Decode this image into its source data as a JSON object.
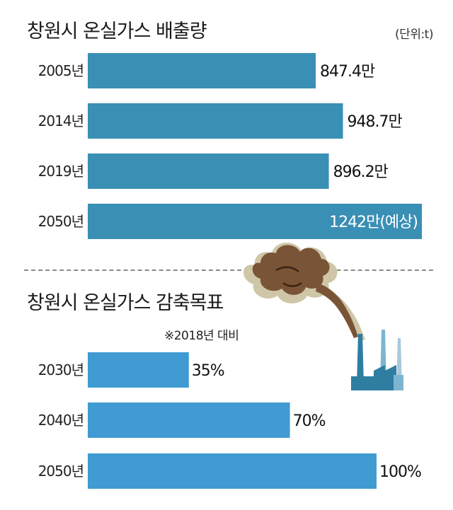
{
  "chart_data": [
    {
      "type": "bar",
      "orientation": "horizontal",
      "title": "창원시 온실가스 배출량",
      "unit_note": "(단위:t)",
      "categories": [
        "2005년",
        "2014년",
        "2019년",
        "2050년"
      ],
      "values": [
        8474000,
        9487000,
        8962000,
        12420000
      ],
      "value_labels": [
        "847.4만",
        "948.7만",
        "896.2만",
        "1242만(예상)"
      ],
      "bar_color": "#3a8fb5"
    },
    {
      "type": "bar",
      "orientation": "horizontal",
      "title": "창원시 온실가스 감축목표",
      "note": "※2018년 대비",
      "categories": [
        "2030년",
        "2040년",
        "2050년"
      ],
      "values": [
        35,
        70,
        100
      ],
      "value_labels": [
        "35%",
        "70%",
        "100%"
      ],
      "bar_color": "#3f9bd1"
    }
  ],
  "illustration": {
    "icon": "factory-smoke-icon",
    "smoke_color": "#7a5436",
    "factory_color": "#2f7ea1"
  }
}
